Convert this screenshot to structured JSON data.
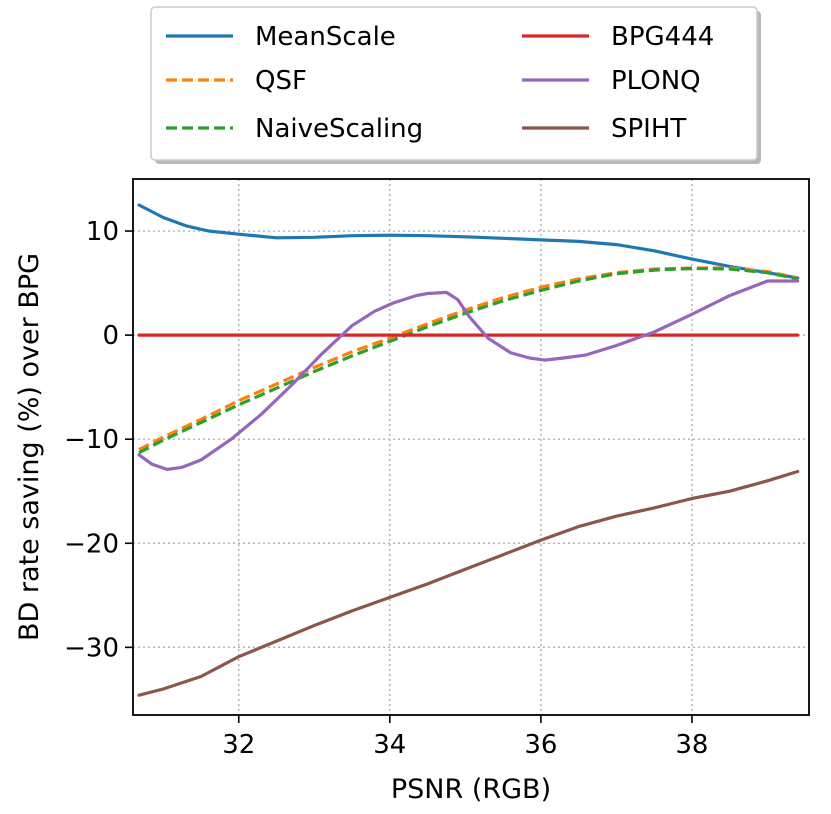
{
  "chart_data": {
    "type": "line",
    "title": "",
    "xlabel": "PSNR (RGB)",
    "ylabel": "BD rate saving (%) over BPG",
    "xlim": [
      30.6,
      39.55
    ],
    "ylim": [
      -36.5,
      15.0
    ],
    "xticks": [
      32,
      34,
      36,
      38
    ],
    "xtick_labels": [
      "32",
      "34",
      "36",
      "38"
    ],
    "yticks": [
      -30,
      -20,
      -10,
      0,
      10
    ],
    "ytick_labels": [
      "−30",
      "−20",
      "−10",
      "0",
      "10"
    ],
    "grid": true,
    "legend_position": "above plot, two columns",
    "series": [
      {
        "name": "MeanScale",
        "color": "#1f77b4",
        "dash": "solid",
        "x": [
          30.68,
          31.0,
          31.3,
          31.6,
          32.0,
          32.5,
          33.0,
          33.5,
          34.0,
          34.5,
          35.0,
          35.5,
          36.0,
          36.5,
          37.0,
          37.5,
          38.0,
          38.5,
          39.0,
          39.4
        ],
        "y": [
          12.5,
          11.3,
          10.5,
          10.0,
          9.7,
          9.35,
          9.4,
          9.55,
          9.6,
          9.55,
          9.45,
          9.3,
          9.15,
          9.0,
          8.7,
          8.1,
          7.3,
          6.6,
          6.0,
          5.5
        ]
      },
      {
        "name": "QSF",
        "color": "#ff7f0e",
        "dash": "dashed",
        "x": [
          30.68,
          31.0,
          31.5,
          32.0,
          32.5,
          33.0,
          33.5,
          34.0,
          34.5,
          35.0,
          35.5,
          36.0,
          36.5,
          37.0,
          37.5,
          38.0,
          38.5,
          39.0,
          39.4
        ],
        "y": [
          -11.0,
          -9.8,
          -8.1,
          -6.3,
          -4.7,
          -3.1,
          -1.6,
          -0.3,
          1.1,
          2.4,
          3.6,
          4.6,
          5.4,
          6.0,
          6.35,
          6.45,
          6.45,
          6.1,
          5.5
        ]
      },
      {
        "name": "NaiveScaling",
        "color": "#2ca02c",
        "dash": "dashed",
        "x": [
          30.68,
          31.0,
          31.5,
          32.0,
          32.5,
          33.0,
          33.5,
          34.0,
          34.5,
          35.0,
          35.5,
          36.0,
          36.5,
          37.0,
          37.5,
          38.0,
          38.5,
          39.0,
          39.4
        ],
        "y": [
          -11.3,
          -10.1,
          -8.4,
          -6.7,
          -5.1,
          -3.5,
          -2.0,
          -0.6,
          0.8,
          2.1,
          3.3,
          4.3,
          5.2,
          5.9,
          6.25,
          6.4,
          6.35,
          6.0,
          5.4
        ]
      },
      {
        "name": "BPG444",
        "color": "#d62728",
        "dash": "solid",
        "x": [
          30.68,
          39.4
        ],
        "y": [
          0.0,
          0.0
        ]
      },
      {
        "name": "PLONQ",
        "color": "#9467bd",
        "dash": "solid",
        "x": [
          30.68,
          30.85,
          31.05,
          31.25,
          31.5,
          31.9,
          32.3,
          32.7,
          33.1,
          33.5,
          33.8,
          34.05,
          34.35,
          34.5,
          34.75,
          34.9,
          35.05,
          35.3,
          35.6,
          35.85,
          36.05,
          36.3,
          36.6,
          37.0,
          37.5,
          38.0,
          38.5,
          39.0,
          39.4
        ],
        "y": [
          -11.5,
          -12.4,
          -12.9,
          -12.7,
          -12.0,
          -10.0,
          -7.6,
          -4.8,
          -1.8,
          0.9,
          2.3,
          3.1,
          3.8,
          4.0,
          4.1,
          3.4,
          1.8,
          -0.3,
          -1.7,
          -2.2,
          -2.4,
          -2.2,
          -1.9,
          -1.0,
          0.3,
          2.0,
          3.8,
          5.2,
          5.2
        ]
      },
      {
        "name": "SPIHT",
        "color": "#8c564b",
        "dash": "solid",
        "x": [
          30.68,
          31.0,
          31.5,
          32.0,
          32.5,
          33.0,
          33.5,
          34.0,
          34.5,
          35.0,
          35.5,
          36.0,
          36.5,
          37.0,
          37.5,
          38.0,
          38.5,
          39.0,
          39.4
        ],
        "y": [
          -34.6,
          -34.0,
          -32.8,
          -30.9,
          -29.4,
          -27.9,
          -26.5,
          -25.2,
          -23.9,
          -22.5,
          -21.1,
          -19.7,
          -18.4,
          -17.4,
          -16.6,
          -15.7,
          -15.0,
          -14.0,
          -13.1
        ]
      }
    ]
  }
}
